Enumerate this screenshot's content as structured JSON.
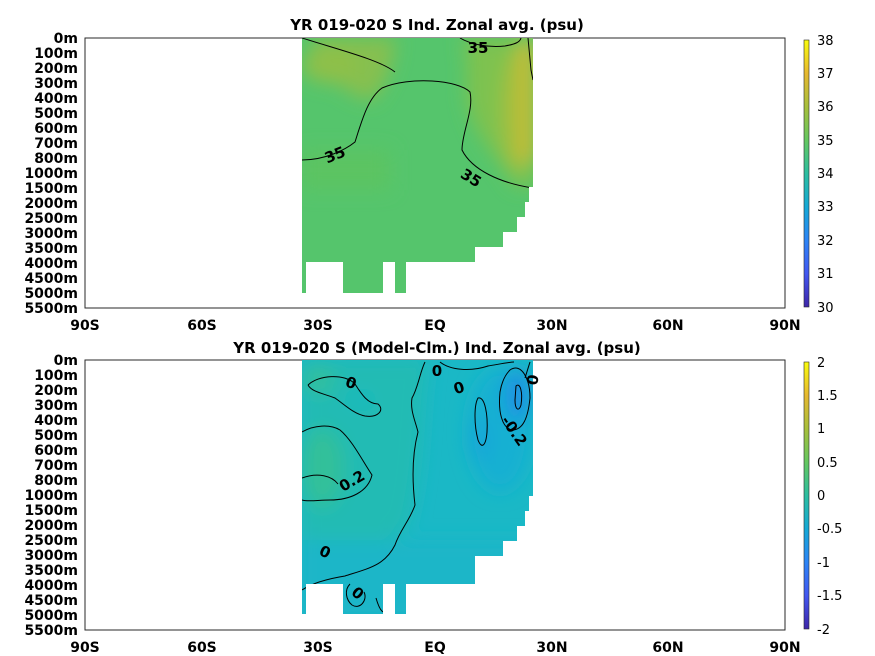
{
  "chart_data": [
    {
      "type": "heatmap",
      "title": "YR 019-020 S Ind. Zonal avg. (psu)",
      "x_ticks": [
        "90S",
        "60S",
        "30S",
        "EQ",
        "30N",
        "60N",
        "90N"
      ],
      "x_range": [
        -90,
        90
      ],
      "y_ticks": [
        "0m",
        "100m",
        "200m",
        "300m",
        "400m",
        "500m",
        "600m",
        "700m",
        "800m",
        "1000m",
        "1500m",
        "2000m",
        "2500m",
        "3000m",
        "3500m",
        "4000m",
        "4500m",
        "5000m",
        "5500m"
      ],
      "colorbar": {
        "min": 30,
        "max": 38,
        "ticks": [
          "30",
          "31",
          "32",
          "33",
          "34",
          "35",
          "36",
          "37",
          "38"
        ]
      },
      "data_extent_lat": [
        -35,
        25
      ],
      "contour_labels": [
        "35",
        "35",
        "35"
      ],
      "colormap": "parula"
    },
    {
      "type": "heatmap",
      "title": "YR 019-020 S (Model-Clm.) Ind. Zonal avg. (psu)",
      "x_ticks": [
        "90S",
        "60S",
        "30S",
        "EQ",
        "30N",
        "60N",
        "90N"
      ],
      "x_range": [
        -90,
        90
      ],
      "y_ticks": [
        "0m",
        "100m",
        "200m",
        "300m",
        "400m",
        "500m",
        "600m",
        "700m",
        "800m",
        "1000m",
        "1500m",
        "2000m",
        "2500m",
        "3000m",
        "3500m",
        "4000m",
        "4500m",
        "5000m",
        "5500m"
      ],
      "colorbar": {
        "min": -2,
        "max": 2,
        "ticks": [
          "-2",
          "-1.5",
          "-1",
          "-0.5",
          "0",
          "0.5",
          "1",
          "1.5",
          "2"
        ]
      },
      "data_extent_lat": [
        -35,
        25
      ],
      "contour_labels": [
        "0",
        "0",
        "0",
        "0",
        "0.2",
        "0",
        "0",
        "-0.2"
      ],
      "colormap": "parula"
    }
  ]
}
